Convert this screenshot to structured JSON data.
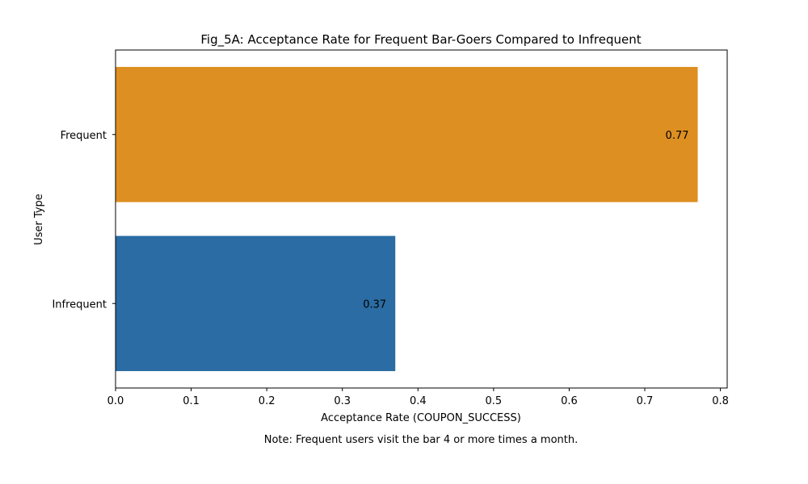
{
  "chart_data": {
    "type": "bar",
    "orientation": "horizontal",
    "title": "Fig_5A: Acceptance Rate for Frequent Bar-Goers Compared to Infrequent",
    "xlabel": "Acceptance Rate (COUPON_SUCCESS)",
    "ylabel": "User Type",
    "categories": [
      "Frequent",
      "Infrequent"
    ],
    "values": [
      0.77,
      0.37
    ],
    "value_labels": [
      "0.77",
      "0.37"
    ],
    "colors": [
      "#DD8F21",
      "#2A6CA3"
    ],
    "xlim": [
      0.0,
      0.809
    ],
    "xticks": [
      0.0,
      0.1,
      0.2,
      0.3,
      0.4,
      0.5,
      0.6,
      0.7,
      0.8
    ],
    "xtick_labels": [
      "0.0",
      "0.1",
      "0.2",
      "0.3",
      "0.4",
      "0.5",
      "0.6",
      "0.7",
      "0.8"
    ],
    "grid": false,
    "note": "Note: Frequent users visit the bar 4 or more times a month."
  }
}
